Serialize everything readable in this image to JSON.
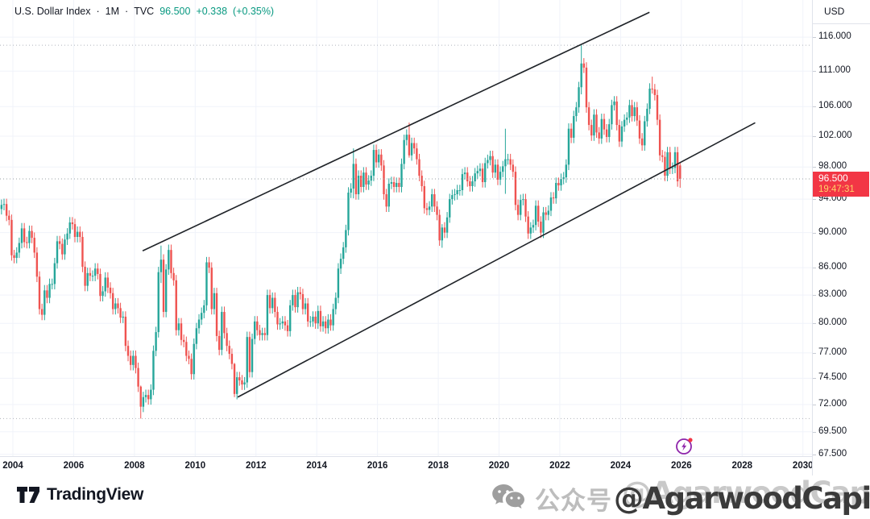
{
  "legend": {
    "title": "U.S. Dollar Index",
    "sep": "·",
    "interval": "1M",
    "exchange": "TVC",
    "price": "96.500",
    "change": "+0.338",
    "change_pct": "(+0.35%)"
  },
  "price_axis": {
    "currency": "USD",
    "ticks": [
      "116.000",
      "111.000",
      "106.000",
      "102.000",
      "98.000",
      "94.000",
      "90.000",
      "86.000",
      "83.000",
      "80.000",
      "77.000",
      "74.500",
      "72.000",
      "69.500",
      "67.500"
    ],
    "badge_price": "96.500",
    "badge_countdown": "19:47:31"
  },
  "time_axis": {
    "ticks": [
      "2004",
      "2006",
      "2008",
      "2010",
      "2012",
      "2014",
      "2016",
      "2018",
      "2020",
      "2022",
      "2024",
      "2026",
      "2028",
      "2030"
    ]
  },
  "footer": {
    "brand": "TradingView",
    "watermark_cn": "公众号",
    "watermark_handle": "@AgarwoodCapital"
  },
  "colors": {
    "up": "#26a69a",
    "down": "#ef5350",
    "accent_green": "#089981",
    "badge_red": "#f23645",
    "countdown_yellow": "#ffd166",
    "grid": "#f0f3fa",
    "axis_border": "#e0e3eb",
    "dotted_level": "#b0b4bc",
    "price_line": "#9aa0a6",
    "trendline": "#1f2328",
    "flash_purple": "#8e24aa"
  },
  "chart_data": {
    "type": "candlestick",
    "title": "U.S. Dollar Index",
    "symbol": "TVC:DXY",
    "interval": "1M",
    "currency": "USD",
    "scale": "log",
    "start_month": "2003-08",
    "x_ticks_years": [
      2004,
      2006,
      2008,
      2010,
      2012,
      2014,
      2016,
      2018,
      2020,
      2022,
      2024,
      2026,
      2028,
      2030
    ],
    "y_ticks": [
      116.0,
      111.0,
      106.0,
      102.0,
      98.0,
      94.0,
      90.0,
      86.0,
      83.0,
      80.0,
      77.0,
      74.5,
      72.0,
      69.5,
      67.5
    ],
    "ylim": [
      67.0,
      118.5
    ],
    "grid": true,
    "closes": [
      93.3,
      93.4,
      92.0,
      91.5,
      87.4,
      87.1,
      87.7,
      88.8,
      90.5,
      88.9,
      88.8,
      90.2,
      89.4,
      87.7,
      85.0,
      81.5,
      80.9,
      83.5,
      82.7,
      84.2,
      84.2,
      86.5,
      89.0,
      88.7,
      87.5,
      89.2,
      89.9,
      91.2,
      91.0,
      89.5,
      90.1,
      89.5,
      86.1,
      84.0,
      85.4,
      85.1,
      85.1,
      85.9,
      85.3,
      82.9,
      83.4,
      84.9,
      83.8,
      83.2,
      81.5,
      82.1,
      81.6,
      80.6,
      80.7,
      77.7,
      76.7,
      75.8,
      76.7,
      75.5,
      73.7,
      71.8,
      72.7,
      72.9,
      72.5,
      73.4,
      77.2,
      79.1,
      85.5,
      86.9,
      81.2,
      85.8,
      88.0,
      85.4,
      84.6,
      79.3,
      80.0,
      78.3,
      78.1,
      76.7,
      76.4,
      74.9,
      77.9,
      79.5,
      80.4,
      81.1,
      81.9,
      86.6,
      86.0,
      81.5,
      83.2,
      78.7,
      77.3,
      81.2,
      79.0,
      77.7,
      76.9,
      75.9,
      73.0,
      74.6,
      74.3,
      73.9,
      74.1,
      78.6,
      75.1,
      78.4,
      80.2,
      79.3,
      78.8,
      79.0,
      78.8,
      83.0,
      81.6,
      82.7,
      81.2,
      79.9,
      80.0,
      80.2,
      79.8,
      79.2,
      81.9,
      83.0,
      81.7,
      83.3,
      83.1,
      81.5,
      82.1,
      80.2,
      80.2,
      80.7,
      80.0,
      81.3,
      79.7,
      80.2,
      79.5,
      80.4,
      79.8,
      81.5,
      82.7,
      85.9,
      87.0,
      88.3,
      90.3,
      94.8,
      95.3,
      98.4,
      94.6,
      96.9,
      95.5,
      97.3,
      95.8,
      96.3,
      96.9,
      100.2,
      98.6,
      99.6,
      98.2,
      94.6,
      93.1,
      95.9,
      96.1,
      95.5,
      96.0,
      95.5,
      98.4,
      101.5,
      102.2,
      99.5,
      101.1,
      100.4,
      99.0,
      96.9,
      95.6,
      92.9,
      92.7,
      93.1,
      94.6,
      93.1,
      92.1,
      89.1,
      90.6,
      90.0,
      91.8,
      94.0,
      94.5,
      94.6,
      95.1,
      95.1,
      97.1,
      97.3,
      96.2,
      95.6,
      96.2,
      97.2,
      97.5,
      97.8,
      96.1,
      98.5,
      98.9,
      99.4,
      97.3,
      98.3,
      96.4,
      97.4,
      98.1,
      99.0,
      99.0,
      98.3,
      97.4,
      93.3,
      92.1,
      93.9,
      94.0,
      91.9,
      89.9,
      90.6,
      90.9,
      93.2,
      91.3,
      90.0,
      92.4,
      92.1,
      92.6,
      94.2,
      94.1,
      96.0,
      95.7,
      96.5,
      96.7,
      98.3,
      103.0,
      101.8,
      104.7,
      105.9,
      108.7,
      112.1,
      111.5,
      105.9,
      103.5,
      102.1,
      104.9,
      102.5,
      101.7,
      104.3,
      102.9,
      101.9,
      103.6,
      106.2,
      106.7,
      103.5,
      101.3,
      103.3,
      104.2,
      104.5,
      106.2,
      104.7,
      105.9,
      104.1,
      101.7,
      100.8,
      104.0,
      105.7,
      108.5,
      108.4,
      107.6,
      104.2,
      99.5,
      99.3,
      96.9,
      99.9,
      97.8,
      97.9,
      99.9,
      96.2,
      96.5
    ],
    "open_overrides": {
      "0": 92.8,
      "268": 98.2
    },
    "wick_overrides": {
      "55": [
        73.8,
        70.7
      ],
      "63": [
        88.5,
        84.3
      ],
      "92": [
        76.0,
        72.7
      ],
      "139": [
        100.4,
        94.1
      ],
      "161": [
        103.82,
        99.2
      ],
      "174": [
        91.0,
        88.25
      ],
      "199": [
        103.0,
        94.65
      ],
      "229": [
        114.78,
        107.7
      ],
      "257": [
        110.2,
        107.8
      ],
      "268": [
        98.6,
        95.4
      ]
    },
    "trendlines": [
      {
        "name": "channel-top",
        "x1_year": 2008.27,
        "p1": 87.9,
        "x2_year": 2024.95,
        "p2": 119.8
      },
      {
        "name": "channel-bottom",
        "x1_year": 2011.4,
        "p1": 72.7,
        "x2_year": 2028.43,
        "p2": 103.8
      }
    ],
    "hlines": [
      114.78,
      70.7
    ],
    "current_price": 96.5,
    "last_price_countdown": "19:47:31"
  }
}
